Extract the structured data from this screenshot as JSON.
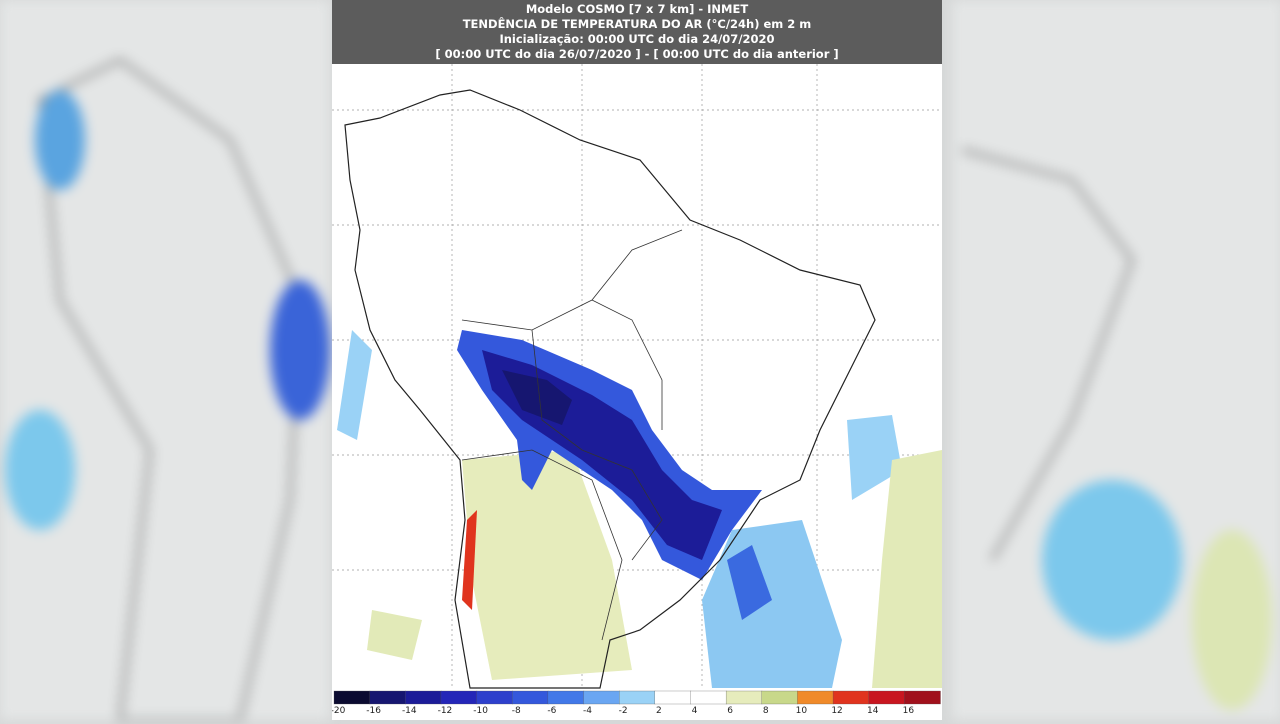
{
  "header": {
    "line1": "Modelo COSMO [7 x 7 km] - INMET",
    "line2": "TENDÊNCIA DE TEMPERATURA DO AR (°C/24h) em 2 m",
    "line3": "Inicialização: 00:00 UTC do dia 24/07/2020",
    "line4": "[ 00:00 UTC do dia 26/07/2020 ] - [ 00:00 UTC do dia anterior ]"
  },
  "colorbar": {
    "labels": [
      -20,
      -16,
      -14,
      -12,
      -10,
      -8,
      -6,
      -4,
      -2,
      2,
      4,
      6,
      8,
      10,
      12,
      14,
      16
    ],
    "colors": [
      "#0b0b30",
      "#161670",
      "#1c1c98",
      "#2426b8",
      "#2e40cc",
      "#3458dc",
      "#4278e8",
      "#6aa6f2",
      "#9ad2f6",
      "#ffffff",
      "#ffffff",
      "#e6ecbc",
      "#c8d88a",
      "#f08a2a",
      "#e0341e",
      "#c81620",
      "#a0101c"
    ]
  }
}
